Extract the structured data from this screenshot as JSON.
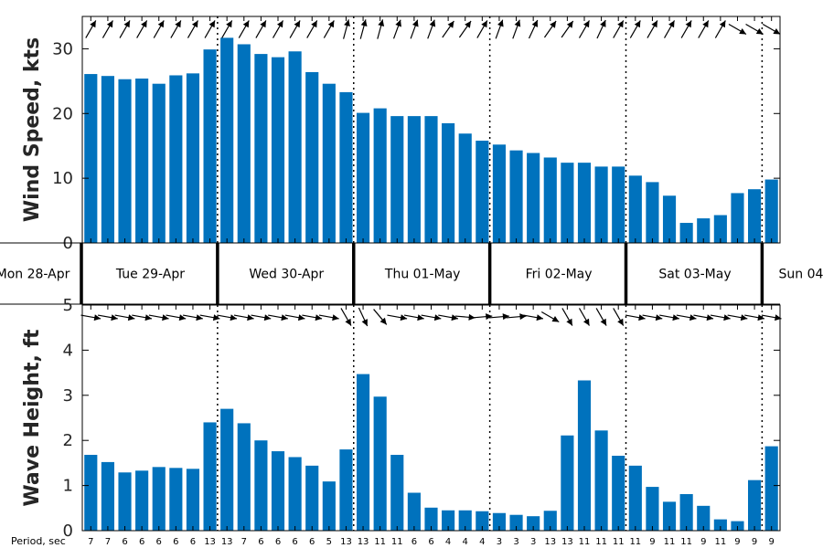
{
  "chart_data": [
    {
      "type": "bar",
      "ylabel": "Wind Speed, kts",
      "ylim": [
        0,
        35
      ],
      "yticks": [
        0,
        10,
        20,
        30
      ],
      "values": [
        26.1,
        25.8,
        25.3,
        25.4,
        24.6,
        25.9,
        26.2,
        29.9,
        31.7,
        30.7,
        29.2,
        28.7,
        29.6,
        26.4,
        24.6,
        23.3,
        20.1,
        20.8,
        19.6,
        19.6,
        19.6,
        18.5,
        16.9,
        15.8,
        15.2,
        14.3,
        13.9,
        13.2,
        12.4,
        12.4,
        11.8,
        11.8,
        10.4,
        9.4,
        7.3,
        3.1,
        3.8,
        4.3,
        7.7,
        8.3,
        9.8
      ],
      "direction_deg": [
        150,
        150,
        150,
        150,
        150,
        150,
        150,
        150,
        150,
        150,
        150,
        150,
        150,
        150,
        150,
        165,
        165,
        165,
        160,
        160,
        160,
        145,
        145,
        150,
        160,
        160,
        155,
        145,
        145,
        150,
        155,
        150,
        150,
        150,
        150,
        150,
        150,
        150,
        60,
        60,
        60
      ],
      "grid": false
    },
    {
      "type": "bar",
      "ylabel": "Wave Height, ft",
      "ylim": [
        0,
        5
      ],
      "yticks": [
        0,
        1,
        2,
        3,
        4,
        5
      ],
      "values": [
        1.68,
        1.52,
        1.29,
        1.33,
        1.41,
        1.39,
        1.37,
        2.4,
        2.7,
        2.38,
        2.0,
        1.76,
        1.63,
        1.44,
        1.09,
        1.8,
        3.47,
        2.97,
        1.68,
        0.84,
        0.51,
        0.45,
        0.45,
        0.43,
        0.39,
        0.35,
        0.32,
        0.44,
        2.11,
        3.33,
        2.22,
        1.66,
        1.44,
        0.97,
        0.64,
        0.81,
        0.55,
        0.25,
        0.21,
        1.12,
        1.87
      ],
      "direction_deg": [
        80,
        80,
        80,
        80,
        80,
        80,
        80,
        80,
        80,
        80,
        80,
        80,
        80,
        80,
        80,
        30,
        25,
        40,
        80,
        80,
        80,
        80,
        85,
        95,
        95,
        95,
        80,
        60,
        30,
        30,
        30,
        30,
        80,
        80,
        80,
        80,
        80,
        80,
        80,
        80,
        80
      ],
      "period_title": "Period, sec",
      "periods": [
        "7",
        "7",
        "6",
        "6",
        "6",
        "6",
        "6",
        "13",
        "13",
        "7",
        "6",
        "6",
        "6",
        "6",
        "5",
        "13",
        "13",
        "11",
        "11",
        "6",
        "6",
        "4",
        "4",
        "4",
        "3",
        "3",
        "3",
        "13",
        "13",
        "11",
        "11",
        "11",
        "11",
        "9",
        "11",
        "11",
        "9",
        "11",
        "9",
        "9",
        "9"
      ],
      "grid": false
    }
  ],
  "days": [
    "Mon 28-Apr",
    "Tue 29-Apr",
    "Wed 30-Apr",
    "Thu 01-May",
    "Fri 02-May",
    "Sat 03-May",
    "Sun 04"
  ],
  "colors": {
    "bar": "#0072BD",
    "axis": "#000000",
    "text": "#262626"
  }
}
